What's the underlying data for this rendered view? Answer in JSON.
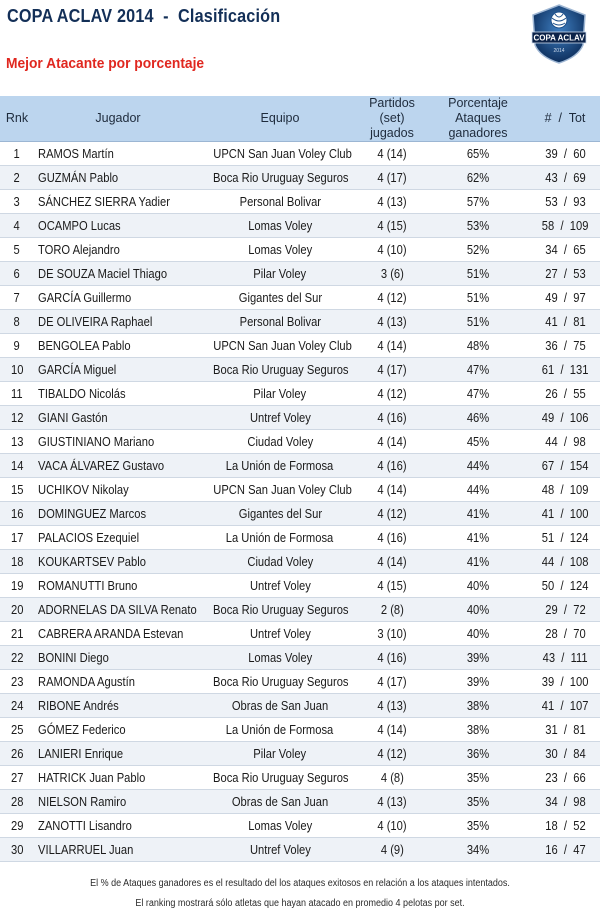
{
  "header": {
    "title": "COPA ACLAV 2014  -  Clasificación",
    "subtitle": "Mejor Atacante por porcentaje",
    "logo_text": "COPA ACLAV",
    "logo_year": "2014"
  },
  "table": {
    "columns": {
      "rank": "Rnk",
      "player": "Jugador",
      "team": "Equipo",
      "matches_line1": "Partidos",
      "matches_line2": "(set) jugados",
      "pct_line1": "Porcentaje Ataques",
      "pct_line2": "ganadores",
      "tot": "#  /  Tot"
    },
    "rows": [
      {
        "rank": "1",
        "player": "RAMOS Martín",
        "team": "UPCN San Juan Voley Club",
        "played": "4 (14)",
        "pct": "65%",
        "tot": "39  /  60"
      },
      {
        "rank": "2",
        "player": "GUZMÁN Pablo",
        "team": "Boca Rio Uruguay Seguros",
        "played": "4 (17)",
        "pct": "62%",
        "tot": "43  /  69"
      },
      {
        "rank": "3",
        "player": "SÁNCHEZ SIERRA Yadier",
        "team": "Personal Bolivar",
        "played": "4 (13)",
        "pct": "57%",
        "tot": "53  /  93"
      },
      {
        "rank": "4",
        "player": "OCAMPO Lucas",
        "team": "Lomas Voley",
        "played": "4 (15)",
        "pct": "53%",
        "tot": "58  /  109"
      },
      {
        "rank": "5",
        "player": "TORO Alejandro",
        "team": "Lomas Voley",
        "played": "4 (10)",
        "pct": "52%",
        "tot": "34  /  65"
      },
      {
        "rank": "6",
        "player": "DE SOUZA Maciel Thiago",
        "team": "Pilar Voley",
        "played": "3 (6)",
        "pct": "51%",
        "tot": "27  /  53"
      },
      {
        "rank": "7",
        "player": "GARCÍA Guillermo",
        "team": "Gigantes del Sur",
        "played": "4 (12)",
        "pct": "51%",
        "tot": "49  /  97"
      },
      {
        "rank": "8",
        "player": "DE OLIVEIRA Raphael",
        "team": "Personal Bolivar",
        "played": "4 (13)",
        "pct": "51%",
        "tot": "41  /  81"
      },
      {
        "rank": "9",
        "player": "BENGOLEA Pablo",
        "team": "UPCN San Juan Voley Club",
        "played": "4 (14)",
        "pct": "48%",
        "tot": "36  /  75"
      },
      {
        "rank": "10",
        "player": "GARCÍA Miguel",
        "team": "Boca Rio Uruguay Seguros",
        "played": "4 (17)",
        "pct": "47%",
        "tot": "61  /  131"
      },
      {
        "rank": "11",
        "player": "TIBALDO Nicolás",
        "team": "Pilar Voley",
        "played": "4 (12)",
        "pct": "47%",
        "tot": "26  /  55"
      },
      {
        "rank": "12",
        "player": "GIANI Gastón",
        "team": "Untref Voley",
        "played": "4 (16)",
        "pct": "46%",
        "tot": "49  /  106"
      },
      {
        "rank": "13",
        "player": "GIUSTINIANO Mariano",
        "team": "Ciudad Voley",
        "played": "4 (14)",
        "pct": "45%",
        "tot": "44  /  98"
      },
      {
        "rank": "14",
        "player": "VACA ÁLVAREZ Gustavo",
        "team": "La Unión de Formosa",
        "played": "4 (16)",
        "pct": "44%",
        "tot": "67  /  154"
      },
      {
        "rank": "15",
        "player": "UCHIKOV Nikolay",
        "team": "UPCN San Juan Voley Club",
        "played": "4 (14)",
        "pct": "44%",
        "tot": "48  /  109"
      },
      {
        "rank": "16",
        "player": "DOMINGUEZ Marcos",
        "team": "Gigantes del Sur",
        "played": "4 (12)",
        "pct": "41%",
        "tot": "41  /  100"
      },
      {
        "rank": "17",
        "player": "PALACIOS Ezequiel",
        "team": "La Unión de Formosa",
        "played": "4 (16)",
        "pct": "41%",
        "tot": "51  /  124"
      },
      {
        "rank": "18",
        "player": "KOUKARTSEV Pablo",
        "team": "Ciudad Voley",
        "played": "4 (14)",
        "pct": "41%",
        "tot": "44  /  108"
      },
      {
        "rank": "19",
        "player": "ROMANUTTI Bruno",
        "team": "Untref Voley",
        "played": "4 (15)",
        "pct": "40%",
        "tot": "50  /  124"
      },
      {
        "rank": "20",
        "player": "ADORNELAS DA SILVA Renato",
        "team": "Boca Rio Uruguay Seguros",
        "played": "2 (8)",
        "pct": "40%",
        "tot": "29  /  72"
      },
      {
        "rank": "21",
        "player": "CABRERA ARANDA Estevan",
        "team": "Untref Voley",
        "played": "3 (10)",
        "pct": "40%",
        "tot": "28  /  70"
      },
      {
        "rank": "22",
        "player": "BONINI Diego",
        "team": "Lomas Voley",
        "played": "4 (16)",
        "pct": "39%",
        "tot": "43  /  111"
      },
      {
        "rank": "23",
        "player": "RAMONDA Agustín",
        "team": "Boca Rio Uruguay Seguros",
        "played": "4 (17)",
        "pct": "39%",
        "tot": "39  /  100"
      },
      {
        "rank": "24",
        "player": "RIBONE Andrés",
        "team": "Obras de San Juan",
        "played": "4 (13)",
        "pct": "38%",
        "tot": "41  /  107"
      },
      {
        "rank": "25",
        "player": "GÓMEZ Federico",
        "team": "La Unión de Formosa",
        "played": "4 (14)",
        "pct": "38%",
        "tot": "31  /  81"
      },
      {
        "rank": "26",
        "player": "LANIERI Enrique",
        "team": "Pilar Voley",
        "played": "4 (12)",
        "pct": "36%",
        "tot": "30  /  84"
      },
      {
        "rank": "27",
        "player": "HATRICK Juan Pablo",
        "team": "Boca Rio Uruguay Seguros",
        "played": "4 (8)",
        "pct": "35%",
        "tot": "23  /  66"
      },
      {
        "rank": "28",
        "player": "NIELSON Ramiro",
        "team": "Obras de San Juan",
        "played": "4 (13)",
        "pct": "35%",
        "tot": "34  /  98"
      },
      {
        "rank": "29",
        "player": "ZANOTTI Lisandro",
        "team": "Lomas Voley",
        "played": "4 (10)",
        "pct": "35%",
        "tot": "18  /  52"
      },
      {
        "rank": "30",
        "player": "VILLARRUEL Juan",
        "team": "Untref Voley",
        "played": "4 (9)",
        "pct": "34%",
        "tot": "16  /  47"
      }
    ]
  },
  "notes": {
    "line1": "El % de Ataques ganadores es el resultado del los ataques exitosos en relación a los ataques intentados.",
    "line2": "El ranking mostrará sólo atletas que hayan atacado en promedio 4 pelotas por set."
  },
  "colors": {
    "title": "#132f57",
    "subtitle": "#e0271f",
    "header_bg": "#bcd5ee",
    "row_alt": "#eef2f7"
  }
}
